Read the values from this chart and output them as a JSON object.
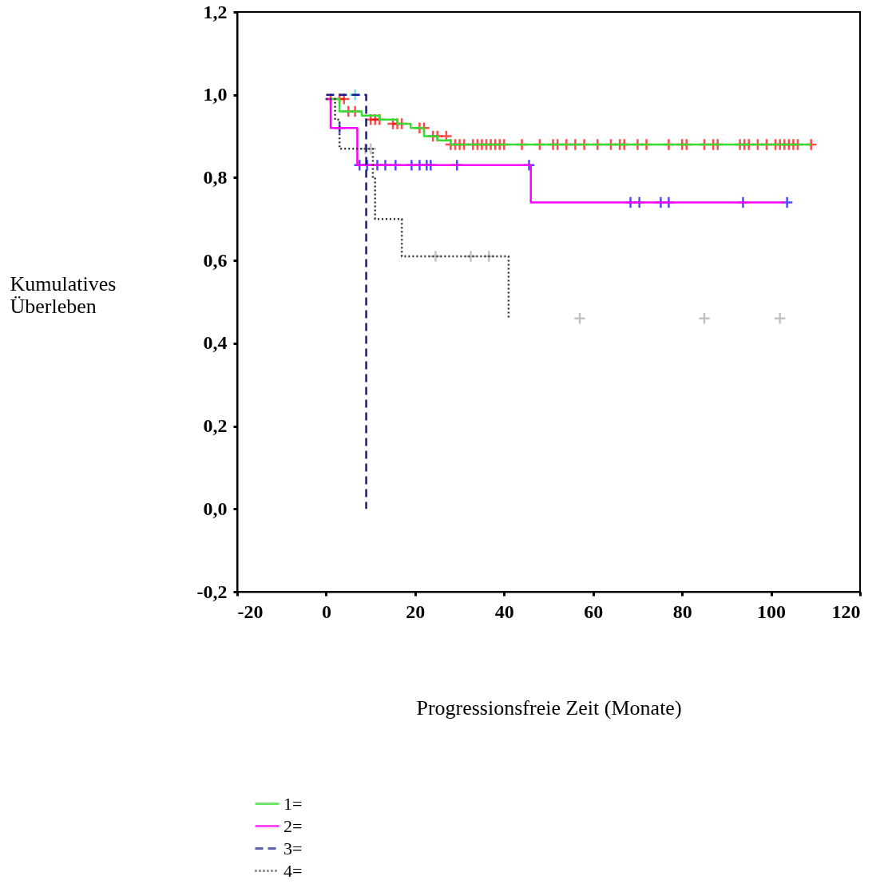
{
  "chart_data": {
    "type": "step",
    "xlabel": "Progressionsfreie Zeit (Monate)",
    "ylabel": "Kumulatives Überleben",
    "xlim": [
      -20,
      120
    ],
    "xticks": [
      -20,
      0,
      20,
      40,
      60,
      80,
      100,
      120
    ],
    "ylim": [
      -0.2,
      1.2
    ],
    "yticks": [
      {
        "value": -0.2,
        "label": "-0,2"
      },
      {
        "value": 0,
        "label": "0,0"
      },
      {
        "value": 0.2,
        "label": "0,2"
      },
      {
        "value": 0.4,
        "label": "0,4"
      },
      {
        "value": 0.6,
        "label": "0,6"
      },
      {
        "value": 0.8,
        "label": "0,8"
      },
      {
        "value": 1.0,
        "label": "1,0"
      },
      {
        "value": 1.2,
        "label": "1,2"
      }
    ],
    "grid": false,
    "legend": "bottom left",
    "series": [
      {
        "name": "1=",
        "color": "#33dd33",
        "line_style": "solid",
        "x": [
          0,
          3,
          8,
          12,
          16,
          19,
          22,
          25,
          28,
          109
        ],
        "values": [
          0.99,
          0.96,
          0.95,
          0.94,
          0.93,
          0.92,
          0.9,
          0.89,
          0.88,
          0.88
        ]
      },
      {
        "name": "2=",
        "color": "#ff00ff",
        "line_style": "solid",
        "x": [
          0,
          1,
          7,
          46,
          103
        ],
        "values": [
          0.99,
          0.92,
          0.83,
          0.74,
          0.74
        ]
      },
      {
        "name": "3=",
        "color": "#1a1a8c",
        "line_style": "dashed",
        "x": [
          0,
          9,
          9
        ],
        "values": [
          1.0,
          1.0,
          0.0
        ]
      },
      {
        "name": "4=",
        "color": "#333333",
        "line_style": "dotted",
        "x": [
          0,
          2,
          3,
          10.5,
          11,
          17,
          41,
          41
        ],
        "values": [
          0.99,
          0.94,
          0.87,
          0.8,
          0.7,
          0.61,
          0.61,
          0.46
        ]
      },
      {
        "type": "scatter",
        "marker": "cross",
        "color": "#ff0000",
        "x": [
          1,
          3,
          4,
          5,
          6.5,
          10,
          11,
          12,
          15,
          16,
          17,
          21,
          22,
          24,
          25,
          27,
          28,
          29,
          30,
          31,
          33,
          34,
          35,
          36,
          37,
          38,
          39,
          40,
          44,
          48,
          51,
          52,
          54,
          56,
          58,
          61,
          64,
          66,
          67,
          70,
          72,
          77,
          80,
          81,
          85,
          87,
          88,
          93,
          94,
          95,
          97,
          99,
          101,
          102,
          103,
          104,
          105,
          106,
          109
        ],
        "values": [
          0.99,
          0.99,
          0.99,
          0.96,
          0.96,
          0.94,
          0.94,
          0.94,
          0.93,
          0.93,
          0.93,
          0.92,
          0.92,
          0.9,
          0.9,
          0.9,
          0.88,
          0.88,
          0.88,
          0.88,
          0.88,
          0.88,
          0.88,
          0.88,
          0.88,
          0.88,
          0.88,
          0.88,
          0.88,
          0.88,
          0.88,
          0.88,
          0.88,
          0.88,
          0.88,
          0.88,
          0.88,
          0.88,
          0.88,
          0.88,
          0.88,
          0.88,
          0.88,
          0.88,
          0.88,
          0.88,
          0.88,
          0.88,
          0.88,
          0.88,
          0.88,
          0.88,
          0.88,
          0.88,
          0.88,
          0.88,
          0.88,
          0.88,
          0.88
        ]
      },
      {
        "type": "scatter",
        "marker": "cross",
        "color": "#0000ff",
        "x": [
          3,
          7.5,
          9.2,
          11.5,
          13.3,
          15.6,
          19.2,
          21,
          22.6,
          23.5,
          29.4,
          45.6,
          68.4,
          70.4,
          75.2,
          77,
          93.7,
          103.6
        ],
        "values": [
          0.92,
          0.83,
          0.83,
          0.83,
          0.83,
          0.83,
          0.83,
          0.83,
          0.83,
          0.83,
          0.83,
          0.83,
          0.74,
          0.74,
          0.74,
          0.74,
          0.74,
          0.74
        ]
      },
      {
        "type": "scatter",
        "marker": "cross",
        "color": "#33dddd",
        "x": [
          6.5
        ],
        "values": [
          1.0
        ]
      },
      {
        "type": "scatter",
        "marker": "cross",
        "color": "#aaaaaa",
        "x": [
          8.8,
          10,
          24.6,
          32.5,
          36.6,
          57,
          85,
          102
        ],
        "values": [
          0.87,
          0.87,
          0.61,
          0.61,
          0.61,
          0.46,
          0.46,
          0.46
        ]
      }
    ]
  }
}
